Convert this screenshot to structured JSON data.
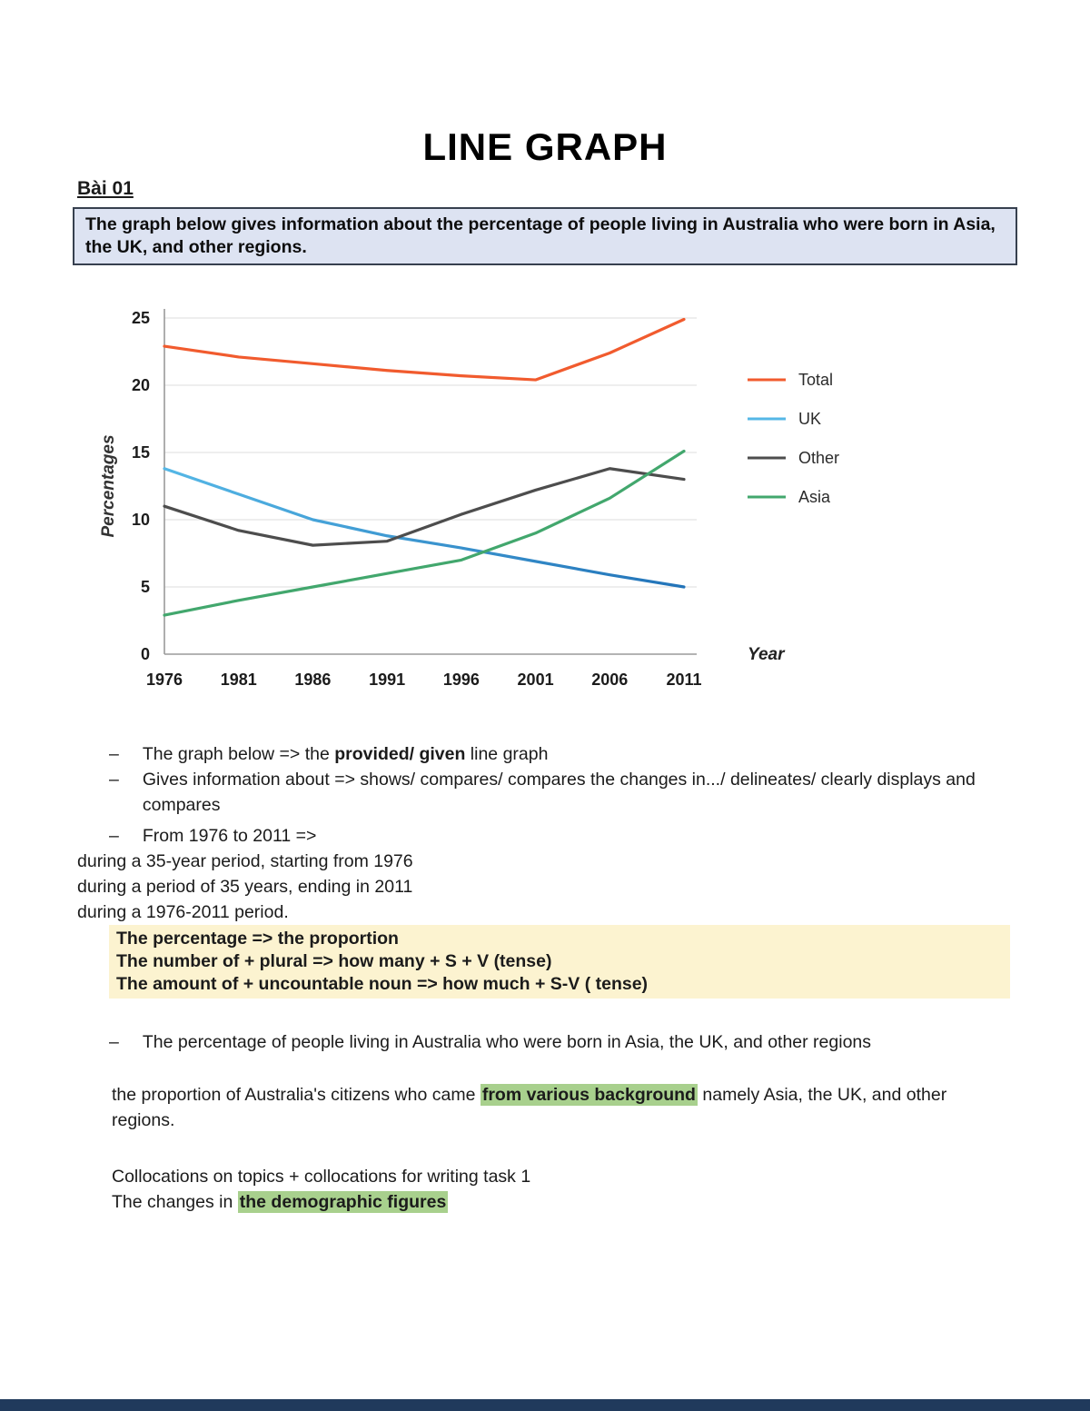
{
  "page": {
    "title": "LINE GRAPH",
    "lesson_label": "Bài 01"
  },
  "prompt": {
    "text": "The graph below gives information about the percentage of people living in Australia who were born in Asia, the UK, and other regions."
  },
  "chart_data": {
    "type": "line",
    "title": "",
    "xlabel": "Year",
    "ylabel": "Percentages",
    "x": [
      "1976",
      "1981",
      "1986",
      "1991",
      "1996",
      "2001",
      "2006",
      "2011"
    ],
    "ylim": [
      0,
      25
    ],
    "yticks": [
      0,
      5,
      10,
      15,
      20,
      25
    ],
    "grid": true,
    "legend_position": "right",
    "series": [
      {
        "name": "Total",
        "color": "#f15b2e",
        "values": [
          22.9,
          22.1,
          21.6,
          21.1,
          20.7,
          20.4,
          22.4,
          24.9
        ]
      },
      {
        "name": "UK",
        "color": "#55b7e6",
        "color_end": "#2273b8",
        "values": [
          13.8,
          11.9,
          10.0,
          8.8,
          7.9,
          6.9,
          5.9,
          5.0
        ]
      },
      {
        "name": "Other",
        "color": "#4d4d4d",
        "values": [
          11.0,
          9.2,
          8.1,
          8.4,
          10.4,
          12.2,
          13.8,
          13.0
        ]
      },
      {
        "name": "Asia",
        "color": "#42a76d",
        "values": [
          2.9,
          4.0,
          5.0,
          6.0,
          7.0,
          9.0,
          11.6,
          15.1
        ]
      }
    ]
  },
  "notes": {
    "dash": "–",
    "bullets": [
      {
        "runs": [
          {
            "t": "The graph below => the "
          },
          {
            "t": "provided/ given",
            "b": true
          },
          {
            "t": " line graph"
          }
        ]
      },
      {
        "runs": [
          {
            "t": "Gives information about => shows/ compares/ compares the changes in.../ delineates/ clearly displays and compares"
          }
        ]
      },
      {
        "runs": [
          {
            "t": "From 1976 to 2011 =>"
          }
        ]
      }
    ],
    "during_lines": [
      "during a 35-year period, starting from 1976",
      "during a period of 35 years, ending in 2011",
      "during a 1976-2011 period."
    ],
    "yellow_box_lines": [
      "The percentage => the proportion",
      "The number of + plural => how many + S + V (tense)",
      "The amount of + uncountable noun => how much + S-V ( tense)"
    ],
    "bullet_percentage": {
      "runs": [
        {
          "t": "The percentage of people living in Australia who were born in Asia, the UK, and other regions"
        }
      ]
    },
    "paragraph_proportion": {
      "runs": [
        {
          "t": "the proportion of Australia's citizens who came "
        },
        {
          "t": "from various background",
          "b": true,
          "hl": true
        },
        {
          "t": " namely Asia, the UK, and other regions."
        }
      ]
    },
    "collocations_line": "Collocations on topics + collocations for writing task 1",
    "changes_line": {
      "runs": [
        {
          "t": "The changes in "
        },
        {
          "t": "the demographic figures",
          "b": true,
          "hl": true
        }
      ]
    }
  },
  "colors": {
    "highlight_green": "#a8d08d",
    "highlight_yellow": "#fcf3d0",
    "prompt_box_bg": "#dde3f2",
    "footer_bar": "#203a5c"
  }
}
